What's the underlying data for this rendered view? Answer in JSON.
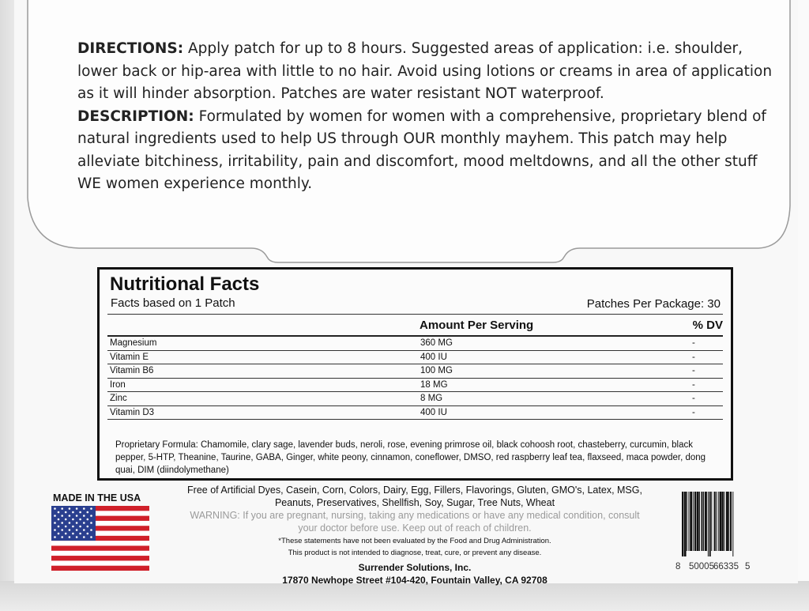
{
  "directions": {
    "label": "DIRECTIONS:",
    "text": " Apply patch for up to 8 hours. Suggested areas of application: i.e. shoulder, lower back or hip-area with little to no hair. Avoid using lotions or creams in area of application as it will hinder absorption. Patches are water resistant NOT waterproof."
  },
  "description": {
    "label": "DESCRIPTION:",
    "text": " Formulated by women for women with a comprehensive, proprietary blend of natural ingredients used to help US through OUR monthly mayhem. This patch may help alleviate bitchiness, irritability, pain and discomfort, mood meltdowns, and all the other stuff WE women experience monthly."
  },
  "nutrition": {
    "title": "Nutritional Facts",
    "basis": "Facts based on 1 Patch",
    "per_package": "Patches Per Package: 30",
    "col_amount": "Amount Per Serving",
    "col_dv": "% DV",
    "rows": [
      {
        "name": "Magnesium",
        "amount": "360 MG",
        "dv": "-"
      },
      {
        "name": "Vitamin E",
        "amount": "400 IU",
        "dv": "-"
      },
      {
        "name": "Vitamin B6",
        "amount": "100 MG",
        "dv": "-"
      },
      {
        "name": "Iron",
        "amount": "18 MG",
        "dv": "-"
      },
      {
        "name": "Zinc",
        "amount": "8 MG",
        "dv": "-"
      },
      {
        "name": "Vitamin D3",
        "amount": "400 IU",
        "dv": "-"
      }
    ],
    "proprietary": "Proprietary Formula: Chamomile, clary sage, lavender buds, neroli, rose, evening primrose oil, black cohoosh root, chasteberry, curcumin, black pepper, 5-HTP, Theanine, Taurine, GABA, Ginger, white peony, cinnamon, coneflower, DMSO, red raspberry leaf tea, flaxseed, maca powder, dong quai, DIM (diindolymethane)"
  },
  "made_in": "MADE IN THE USA",
  "free_of": "Free of Artificial Dyes, Casein, Corn, Colors, Dairy, Egg, Fillers, Flavorings, Gluten, GMO's, Latex, MSG, Peanuts, Preservatives, Shellfish, Soy, Sugar, Tree Nuts, Wheat",
  "warning": "WARNING: If you are pregnant, nursing, taking any medications or have any medical condition, consult your doctor before use. Keep out of reach of children.",
  "fda_1": "*These statements have not been evaluated by the Food and Drug Administration.",
  "fda_2": "This product is not intended to diagnose, treat, cure, or prevent any disease.",
  "company": "Surrender Solutions, Inc.",
  "address": "17870 Newhope Street #104-420, Fountain Valley, CA 92708",
  "barcode": {
    "d1": "8",
    "d2": "50005",
    "d3": "66335",
    "d4": "5"
  },
  "colors": {
    "flag_red": "#d0202a",
    "flag_blue": "#2a3f8f"
  }
}
